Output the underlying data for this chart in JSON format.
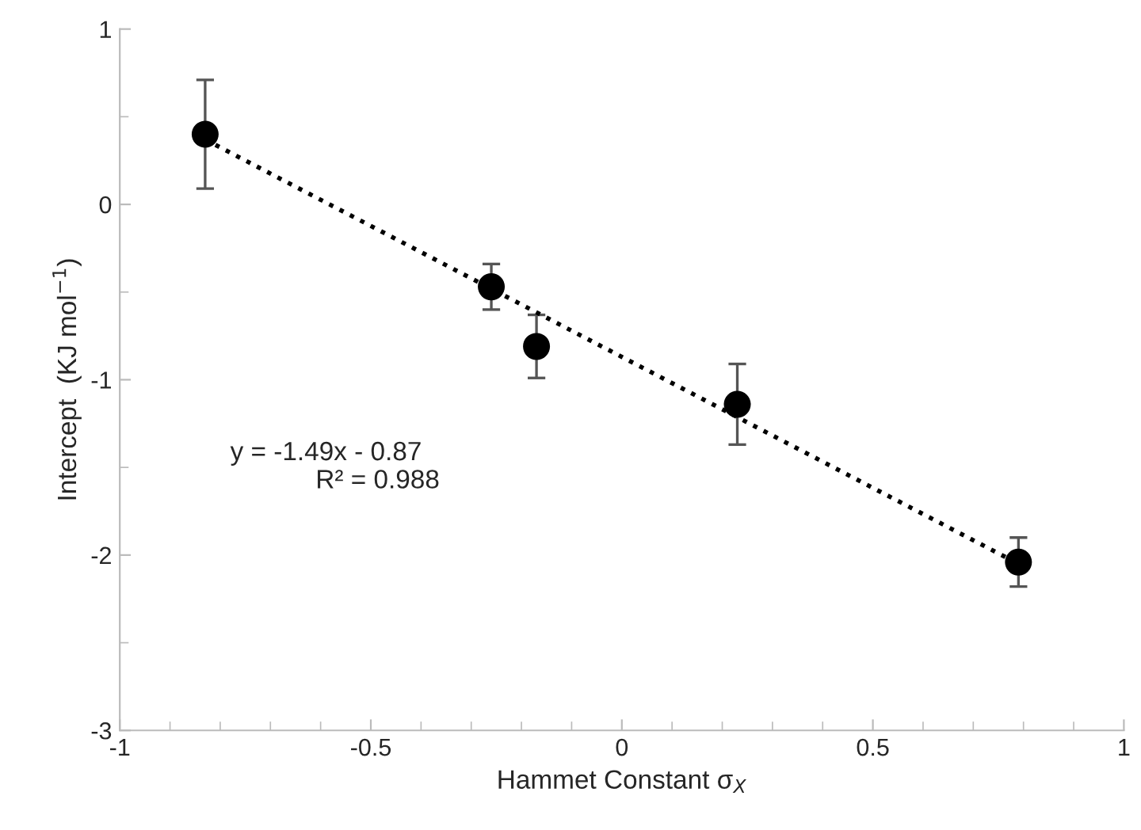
{
  "chart_data": {
    "type": "scatter",
    "xlabel": "Hammet Constant σ$_{X}$",
    "ylabel": "Intercept  (KJ mol$^{−1}$)",
    "xlim": [
      -1,
      1
    ],
    "xticks": [
      -1,
      -0.5,
      0,
      0.5,
      1
    ],
    "ylim": [
      -3,
      1
    ],
    "yticks": [
      -3,
      -2,
      -1,
      0,
      1
    ],
    "grid": false,
    "series": [
      {
        "color": "#000000",
        "marker": "circle",
        "x": [
          -0.83,
          -0.26,
          -0.17,
          0.23,
          0.79
        ],
        "values": [
          0.4,
          -0.47,
          -0.81,
          -1.14,
          -2.04
        ],
        "errors": [
          0.31,
          0.13,
          0.18,
          0.23,
          0.14
        ]
      },
      {
        "type": "line",
        "color": "#000000",
        "line_style": "dotted",
        "x": [
          -0.83,
          0.79
        ],
        "values": [
          0.37,
          -2.05
        ]
      }
    ],
    "annotations": [
      "y = -1.49x - 0.87",
      "R² = 0.988"
    ]
  }
}
